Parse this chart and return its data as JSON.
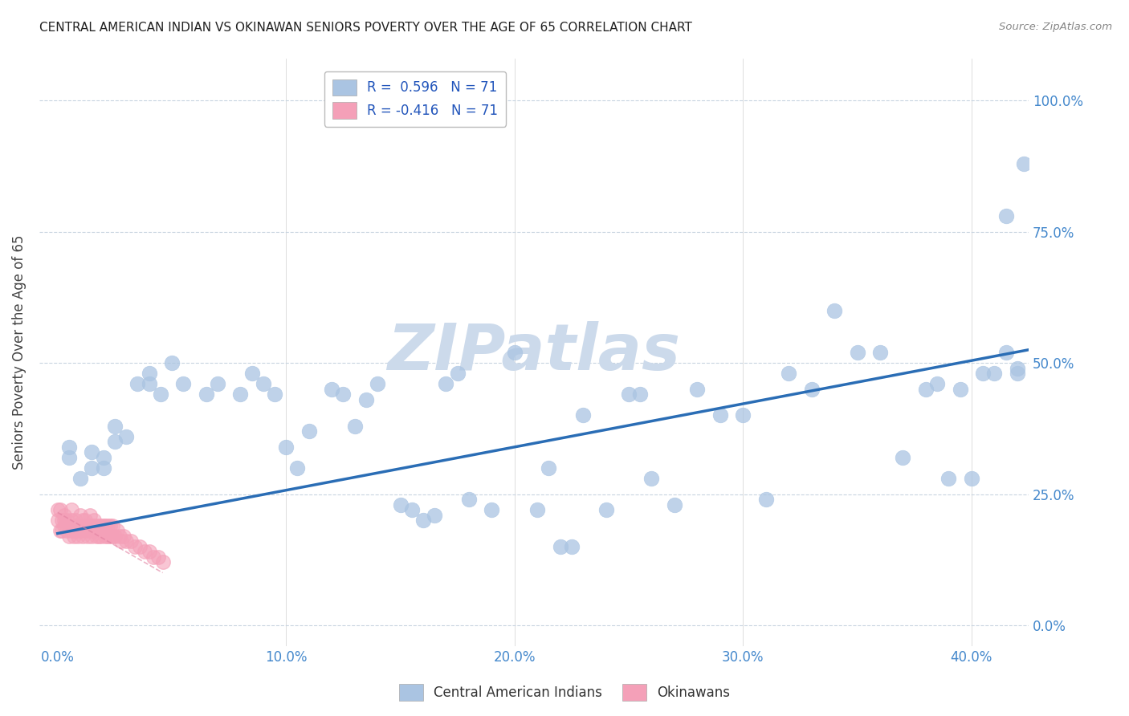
{
  "title": "CENTRAL AMERICAN INDIAN VS OKINAWAN SENIORS POVERTY OVER THE AGE OF 65 CORRELATION CHART",
  "source": "Source: ZipAtlas.com",
  "ylabel": "Seniors Poverty Over the Age of 65",
  "xlim": [
    -0.008,
    0.425
  ],
  "ylim": [
    -0.04,
    1.08
  ],
  "R_blue": 0.596,
  "N_blue": 71,
  "R_pink": -0.416,
  "N_pink": 71,
  "blue_color": "#aac4e2",
  "pink_color": "#f4a0b8",
  "line_color": "#2a6db5",
  "axis_tick_color": "#4488cc",
  "watermark_color": "#ccdaeb",
  "legend_label_blue": "Central American Indians",
  "legend_label_pink": "Okinawans",
  "blue_line_x0": 0.0,
  "blue_line_y0": 0.175,
  "blue_line_x1": 0.425,
  "blue_line_y1": 0.525,
  "blue_scatter_x": [
    0.005,
    0.005,
    0.015,
    0.01,
    0.015,
    0.02,
    0.02,
    0.025,
    0.03,
    0.025,
    0.035,
    0.04,
    0.04,
    0.045,
    0.05,
    0.055,
    0.065,
    0.07,
    0.08,
    0.085,
    0.09,
    0.095,
    0.1,
    0.105,
    0.11,
    0.12,
    0.125,
    0.13,
    0.135,
    0.14,
    0.15,
    0.155,
    0.16,
    0.165,
    0.17,
    0.175,
    0.18,
    0.19,
    0.2,
    0.21,
    0.215,
    0.22,
    0.225,
    0.23,
    0.24,
    0.25,
    0.255,
    0.26,
    0.27,
    0.28,
    0.29,
    0.3,
    0.31,
    0.32,
    0.33,
    0.34,
    0.35,
    0.36,
    0.37,
    0.38,
    0.385,
    0.39,
    0.395,
    0.4,
    0.405,
    0.41,
    0.415,
    0.42,
    0.423,
    0.415,
    0.42
  ],
  "blue_scatter_y": [
    0.34,
    0.32,
    0.33,
    0.28,
    0.3,
    0.32,
    0.3,
    0.35,
    0.36,
    0.38,
    0.46,
    0.46,
    0.48,
    0.44,
    0.5,
    0.46,
    0.44,
    0.46,
    0.44,
    0.48,
    0.46,
    0.44,
    0.34,
    0.3,
    0.37,
    0.45,
    0.44,
    0.38,
    0.43,
    0.46,
    0.23,
    0.22,
    0.2,
    0.21,
    0.46,
    0.48,
    0.24,
    0.22,
    0.52,
    0.22,
    0.3,
    0.15,
    0.15,
    0.4,
    0.22,
    0.44,
    0.44,
    0.28,
    0.23,
    0.45,
    0.4,
    0.4,
    0.24,
    0.48,
    0.45,
    0.6,
    0.52,
    0.52,
    0.32,
    0.45,
    0.46,
    0.28,
    0.45,
    0.28,
    0.48,
    0.48,
    0.52,
    0.48,
    0.88,
    0.78,
    0.49
  ],
  "pink_scatter_x": [
    0.0,
    0.0,
    0.001,
    0.001,
    0.002,
    0.002,
    0.003,
    0.003,
    0.003,
    0.004,
    0.004,
    0.005,
    0.005,
    0.006,
    0.006,
    0.006,
    0.007,
    0.007,
    0.008,
    0.008,
    0.008,
    0.009,
    0.009,
    0.01,
    0.01,
    0.01,
    0.011,
    0.011,
    0.012,
    0.012,
    0.012,
    0.013,
    0.013,
    0.014,
    0.014,
    0.014,
    0.015,
    0.015,
    0.016,
    0.016,
    0.016,
    0.017,
    0.017,
    0.018,
    0.018,
    0.019,
    0.019,
    0.02,
    0.02,
    0.021,
    0.021,
    0.022,
    0.022,
    0.023,
    0.023,
    0.024,
    0.024,
    0.025,
    0.026,
    0.027,
    0.028,
    0.029,
    0.03,
    0.032,
    0.034,
    0.036,
    0.038,
    0.04,
    0.042,
    0.044,
    0.046
  ],
  "pink_scatter_y": [
    0.2,
    0.22,
    0.18,
    0.22,
    0.2,
    0.18,
    0.19,
    0.21,
    0.2,
    0.18,
    0.2,
    0.17,
    0.19,
    0.18,
    0.2,
    0.22,
    0.17,
    0.19,
    0.18,
    0.2,
    0.18,
    0.17,
    0.19,
    0.18,
    0.19,
    0.21,
    0.17,
    0.2,
    0.18,
    0.19,
    0.2,
    0.17,
    0.19,
    0.18,
    0.19,
    0.21,
    0.17,
    0.19,
    0.18,
    0.2,
    0.19,
    0.17,
    0.19,
    0.17,
    0.19,
    0.17,
    0.19,
    0.18,
    0.19,
    0.17,
    0.19,
    0.17,
    0.19,
    0.17,
    0.19,
    0.17,
    0.19,
    0.17,
    0.18,
    0.17,
    0.16,
    0.17,
    0.16,
    0.16,
    0.15,
    0.15,
    0.14,
    0.14,
    0.13,
    0.13,
    0.12
  ]
}
